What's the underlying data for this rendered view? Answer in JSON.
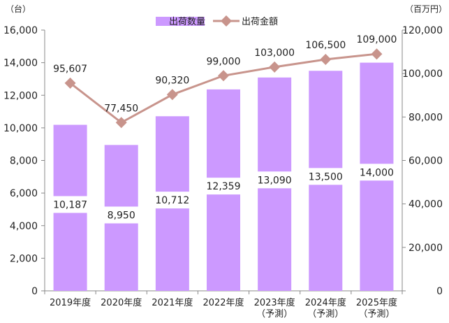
{
  "chart_data": {
    "type": "bar",
    "categories": [
      "2019年度",
      "2020年度",
      "2021年度",
      "2022年度",
      "2023年度",
      "2024年度",
      "2025年度"
    ],
    "category_sublabels": [
      "",
      "",
      "",
      "",
      "（予測）",
      "（予測）",
      "（予測）"
    ],
    "series": [
      {
        "name": "出荷数量",
        "type": "bar",
        "axis": "left",
        "values": [
          10187,
          8950,
          10712,
          12359,
          13090,
          13500,
          14000
        ],
        "labels": [
          "10,187",
          "8,950",
          "10,712",
          "12,359",
          "13,090",
          "13,500",
          "14,000"
        ],
        "color": "#cc99ff"
      },
      {
        "name": "出荷金額",
        "type": "line",
        "axis": "right",
        "values": [
          95607,
          77450,
          90320,
          99000,
          103000,
          106500,
          109000
        ],
        "labels": [
          "95,607",
          "77,450",
          "90,320",
          "99,000",
          "103,000",
          "106,500",
          "109,000"
        ],
        "color": "#c8948c"
      }
    ],
    "y_left": {
      "unit": "（台）",
      "ylim": [
        0,
        16000
      ],
      "ticks": [
        0,
        2000,
        4000,
        6000,
        8000,
        10000,
        12000,
        14000,
        16000
      ],
      "tick_labels": [
        "0",
        "2,000",
        "4,000",
        "6,000",
        "8,000",
        "10,000",
        "12,000",
        "14,000",
        "16,000"
      ]
    },
    "y_right": {
      "unit": "（百万円）",
      "ylim": [
        0,
        120000
      ],
      "ticks": [
        0,
        20000,
        40000,
        60000,
        80000,
        100000,
        120000
      ],
      "tick_labels": [
        "0",
        "20,000",
        "40,000",
        "60,000",
        "80,000",
        "100,000",
        "120,000"
      ]
    },
    "grid": false,
    "legend": "top-center"
  }
}
